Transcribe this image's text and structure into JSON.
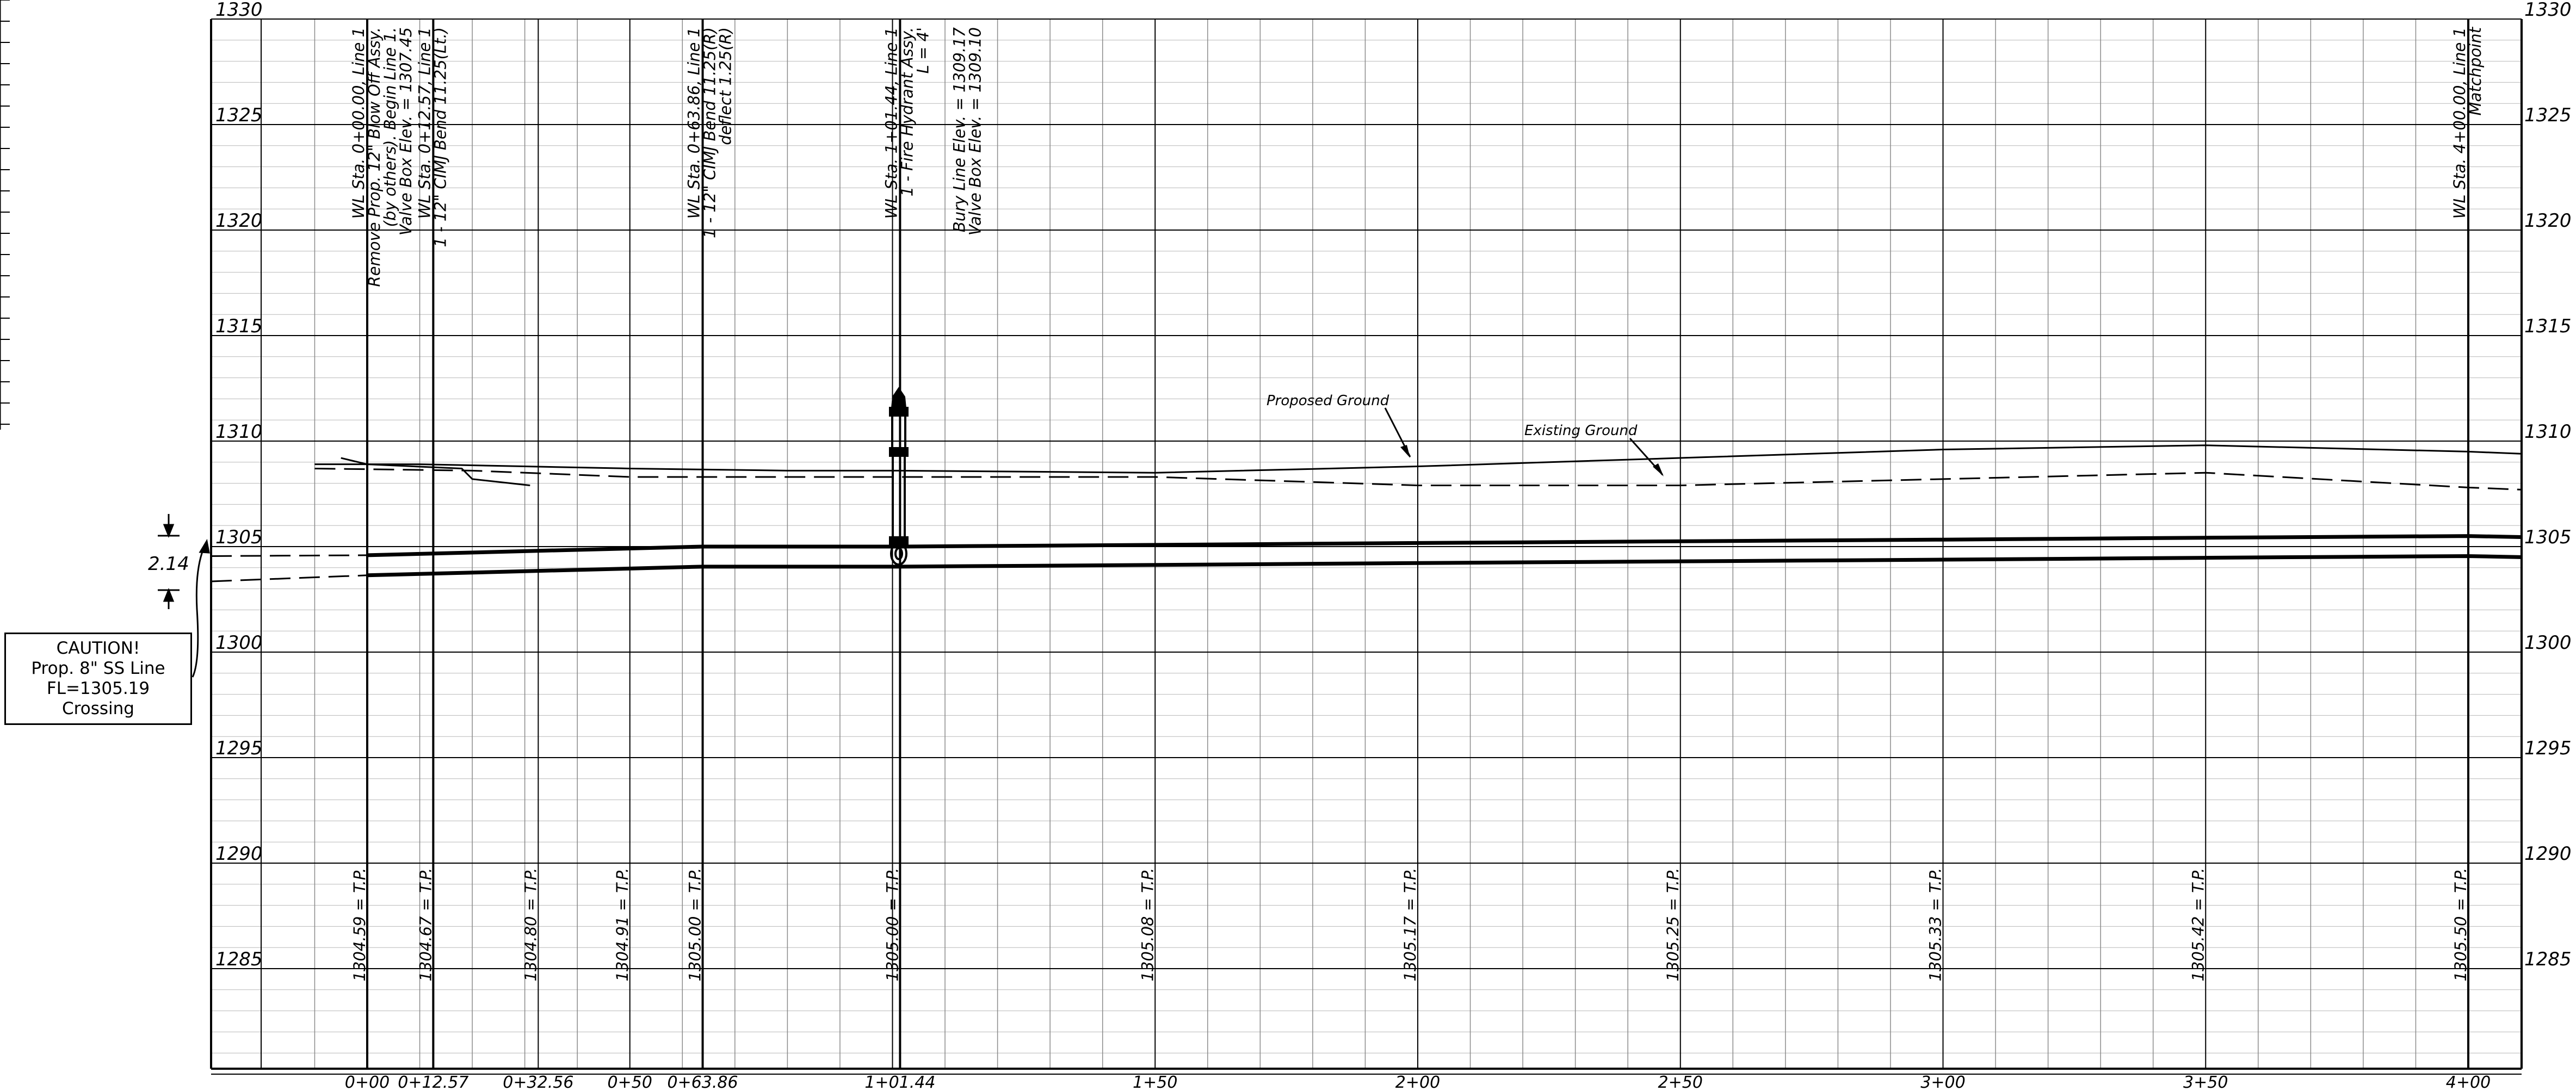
{
  "profile": {
    "elevations": [
      "1330",
      "1325",
      "1320",
      "1315",
      "1310",
      "1305",
      "1300",
      "1295",
      "1290",
      "1285"
    ],
    "callouts": [
      {
        "id": "start",
        "lines": [
          "WL Sta. 0+00.00, Line 1",
          "Remove Prop. 12\" Blow Off Assy.",
          "(by others). Begin Line 1.",
          "Valve Box Elev. = 1307.45"
        ]
      },
      {
        "id": "bend1",
        "lines": [
          "WL Sta. 0+12.57, Line 1",
          "1 - 12\" CIMJ Bend 11.25(Lt.)"
        ]
      },
      {
        "id": "bend2",
        "lines": [
          "WL Sta. 0+63.86, Line 1",
          "1 - 12\" CIMJ Bend 11.25(R)",
          "deflect 1.25(R)"
        ]
      },
      {
        "id": "hydrant",
        "lines": [
          "WL Sta. 1+01.44, Line 1",
          "1 - Fire Hydrant Assy.",
          "L = 4'",
          "Bury Line Elev. = 1309.17",
          "Valve Box Elev. = 1309.10"
        ]
      },
      {
        "id": "matchpoint",
        "lines": [
          "WL Sta. 4+00.00, Line 1",
          "Matchpoint"
        ]
      }
    ],
    "tp_labels": [
      "1304.59 = T.P.",
      "1304.67 = T.P.",
      "1304.80 = T.P.",
      "1304.91 = T.P.",
      "1305.00 = T.P.",
      "1305.00 = T.P.",
      "1305.08 = T.P.",
      "1305.17 = T.P.",
      "1305.25 = T.P.",
      "1305.33 = T.P.",
      "1305.42 = T.P.",
      "1305.50 = T.P."
    ],
    "stations": [
      "0+00",
      "0+12.57",
      "0+32.56",
      "0+50",
      "0+63.86",
      "1+01.44",
      "1+50",
      "2+00",
      "2+50",
      "3+00",
      "3+50",
      "4+00"
    ],
    "proposed_ground_label": "Proposed Ground",
    "existing_ground_label": "Existing Ground",
    "clearance_dim": "2.14",
    "caution": {
      "line1": "CAUTION!",
      "line2": "Prop. 8\" SS Line",
      "line3": "FL=1305.19",
      "line4": "Crossing"
    }
  }
}
